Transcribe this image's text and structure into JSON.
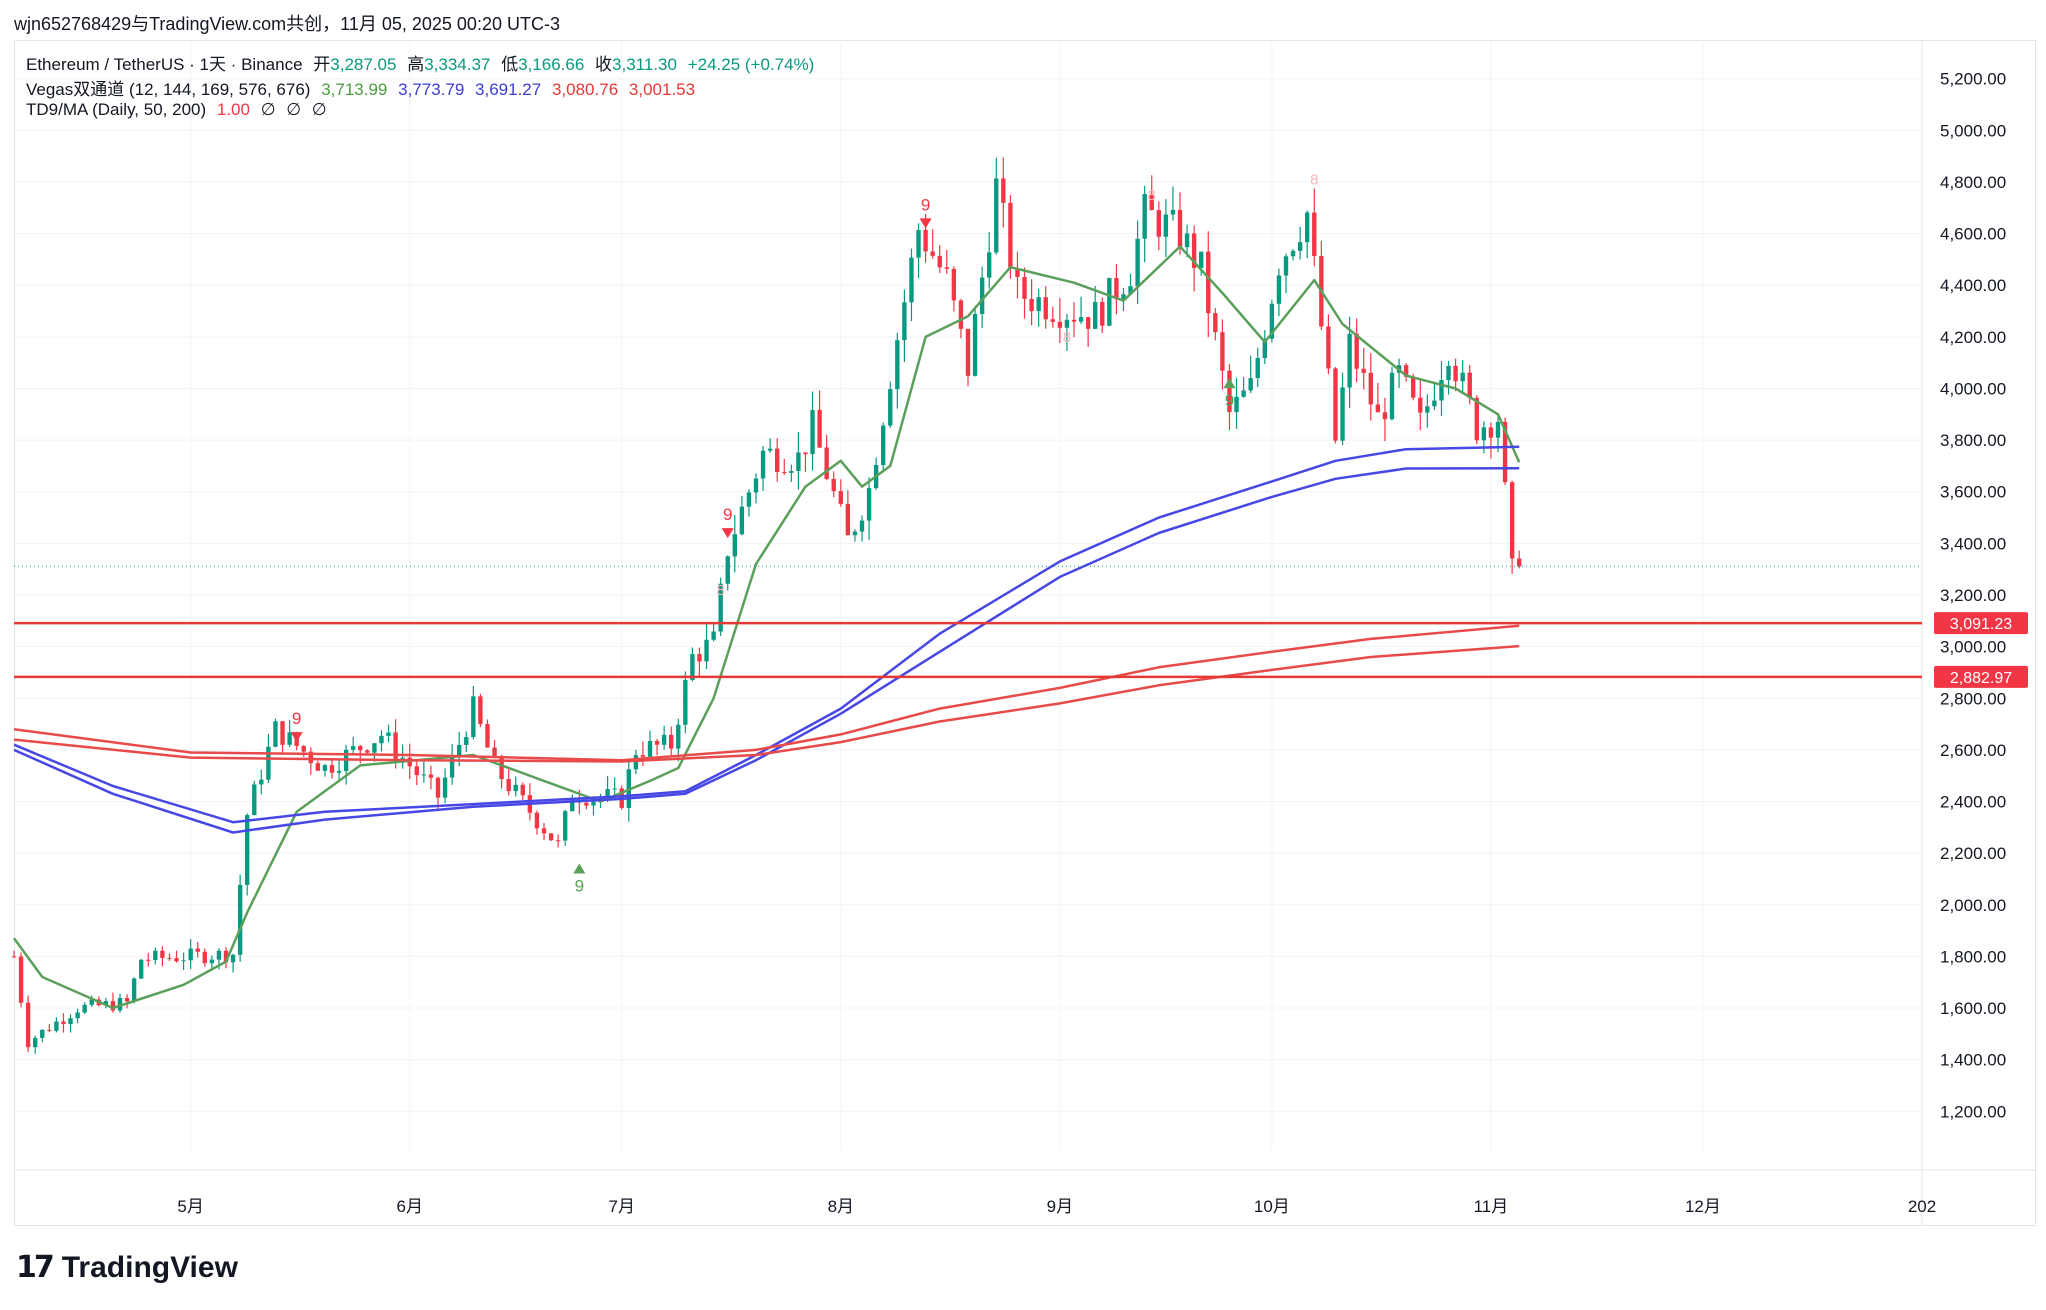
{
  "header": {
    "attribution": "wjn652768429与TradingView.com共创，11月 05, 2025 00:20 UTC-3"
  },
  "legend": {
    "symbol": "Ethereum / TetherUS · 1天 · Binance",
    "ohlc": [
      {
        "label": "开",
        "value": "3,287.05"
      },
      {
        "label": "高",
        "value": "3,334.37"
      },
      {
        "label": "低",
        "value": "3,166.66"
      },
      {
        "label": "收",
        "value": "3,311.30"
      }
    ],
    "change": "+24.25 (+0.74%)",
    "vegas": {
      "title": "Vegas双通道 (12, 144, 169, 576, 676)",
      "values": [
        {
          "value": "3,713.99",
          "color": "#4c9b3f"
        },
        {
          "value": "3,773.79",
          "color": "#3d3dd6"
        },
        {
          "value": "3,691.27",
          "color": "#3d3dd6"
        },
        {
          "value": "3,080.76",
          "color": "#e53935"
        },
        {
          "value": "3,001.53",
          "color": "#e53935"
        }
      ]
    },
    "td9": {
      "title": "TD9/MA (Daily, 50, 200)",
      "value": "1.00",
      "value_color": "#f23645",
      "empty_marks": [
        "∅",
        "∅",
        "∅"
      ]
    }
  },
  "price_labels": [
    {
      "value": "3,091.23",
      "color": "#f23645"
    },
    {
      "value": "2,882.97",
      "color": "#f23645"
    }
  ],
  "colors": {
    "up": "#089981",
    "down": "#f23645",
    "ema12": "#5aa05a",
    "ema_blue": "#4747e6",
    "ema_red": "#e84a4a",
    "hline": "#e53935"
  },
  "logo_text": "TradingView",
  "chart_data": {
    "type": "candlestick",
    "symbol": "ETH/USDT",
    "interval": "1D",
    "y_axis": {
      "ticks": [
        "1,200.00",
        "1,400.00",
        "1,600.00",
        "1,800.00",
        "2,000.00",
        "2,200.00",
        "2,400.00",
        "2,600.00",
        "2,800.00",
        "3,000.00",
        "3,200.00",
        "3,400.00",
        "3,600.00",
        "3,800.00",
        "4,000.00",
        "4,200.00",
        "4,400.00",
        "4,600.00",
        "4,800.00",
        "5,000.00",
        "5,200.00"
      ],
      "range": [
        1050,
        5350
      ]
    },
    "x_axis": {
      "ticks": [
        "5月",
        "6月",
        "7月",
        "8月",
        "9月",
        "10月",
        "11月",
        "12月",
        "202"
      ],
      "tick_dates": [
        "2025-05-01",
        "2025-06-01",
        "2025-07-01",
        "2025-08-01",
        "2025-09-01",
        "2025-10-01",
        "2025-11-01",
        "2025-12-01",
        "2026-01-01"
      ],
      "start": "2025-04-06",
      "end": "2026-01-01"
    },
    "horizontal_lines": [
      3091.23,
      2882.97
    ],
    "last_price": 3311.3,
    "anchor_prices": [
      {
        "date": "2025-04-06",
        "close": 1800
      },
      {
        "date": "2025-04-08",
        "close": 1470
      },
      {
        "date": "2025-04-15",
        "close": 1600
      },
      {
        "date": "2025-04-22",
        "close": 1620
      },
      {
        "date": "2025-04-24",
        "close": 1790
      },
      {
        "date": "2025-05-07",
        "close": 1810
      },
      {
        "date": "2025-05-09",
        "close": 2350
      },
      {
        "date": "2025-05-13",
        "close": 2680
      },
      {
        "date": "2025-05-20",
        "close": 2530
      },
      {
        "date": "2025-05-28",
        "close": 2660
      },
      {
        "date": "2025-06-05",
        "close": 2420
      },
      {
        "date": "2025-06-10",
        "close": 2760
      },
      {
        "date": "2025-06-13",
        "close": 2530
      },
      {
        "date": "2025-06-22",
        "close": 2230
      },
      {
        "date": "2025-06-24",
        "close": 2430
      },
      {
        "date": "2025-07-01",
        "close": 2410
      },
      {
        "date": "2025-07-03",
        "close": 2600
      },
      {
        "date": "2025-07-08",
        "close": 2620
      },
      {
        "date": "2025-07-11",
        "close": 2960
      },
      {
        "date": "2025-07-14",
        "close": 3020
      },
      {
        "date": "2025-07-16",
        "close": 3380
      },
      {
        "date": "2025-07-21",
        "close": 3750
      },
      {
        "date": "2025-07-26",
        "close": 3730
      },
      {
        "date": "2025-07-28",
        "close": 3850
      },
      {
        "date": "2025-08-02",
        "close": 3410
      },
      {
        "date": "2025-08-05",
        "close": 3610
      },
      {
        "date": "2025-08-09",
        "close": 4200
      },
      {
        "date": "2025-08-12",
        "close": 4620
      },
      {
        "date": "2025-08-16",
        "close": 4420
      },
      {
        "date": "2025-08-19",
        "close": 4080
      },
      {
        "date": "2025-08-23",
        "close": 4780
      },
      {
        "date": "2025-08-26",
        "close": 4370
      },
      {
        "date": "2025-09-01",
        "close": 4310
      },
      {
        "date": "2025-09-06",
        "close": 4280
      },
      {
        "date": "2025-09-11",
        "close": 4460
      },
      {
        "date": "2025-09-13",
        "close": 4680
      },
      {
        "date": "2025-09-18",
        "close": 4600
      },
      {
        "date": "2025-09-21",
        "close": 4460
      },
      {
        "date": "2025-09-25",
        "close": 3900
      },
      {
        "date": "2025-09-28",
        "close": 4000
      },
      {
        "date": "2025-10-02",
        "close": 4490
      },
      {
        "date": "2025-10-06",
        "close": 4680
      },
      {
        "date": "2025-10-10",
        "close": 3800
      },
      {
        "date": "2025-10-12",
        "close": 4170
      },
      {
        "date": "2025-10-16",
        "close": 3880
      },
      {
        "date": "2025-10-19",
        "close": 4050
      },
      {
        "date": "2025-10-22",
        "close": 3860
      },
      {
        "date": "2025-10-26",
        "close": 4160
      },
      {
        "date": "2025-10-30",
        "close": 3850
      },
      {
        "date": "2025-11-02",
        "close": 3890
      },
      {
        "date": "2025-11-03",
        "close": 3590
      },
      {
        "date": "2025-11-04",
        "close": 3287
      },
      {
        "date": "2025-11-05",
        "close": 3311
      }
    ],
    "series": [
      {
        "name": "Vegas EMA12",
        "last": 3713.99,
        "points": [
          [
            "2025-04-06",
            1870
          ],
          [
            "2025-04-10",
            1720
          ],
          [
            "2025-04-20",
            1600
          ],
          [
            "2025-04-30",
            1690
          ],
          [
            "2025-05-06",
            1780
          ],
          [
            "2025-05-09",
            1970
          ],
          [
            "2025-05-16",
            2360
          ],
          [
            "2025-05-25",
            2540
          ],
          [
            "2025-06-10",
            2580
          ],
          [
            "2025-06-20",
            2480
          ],
          [
            "2025-06-28",
            2400
          ],
          [
            "2025-07-05",
            2480
          ],
          [
            "2025-07-09",
            2530
          ],
          [
            "2025-07-14",
            2800
          ],
          [
            "2025-07-20",
            3320
          ],
          [
            "2025-07-27",
            3620
          ],
          [
            "2025-08-01",
            3720
          ],
          [
            "2025-08-04",
            3620
          ],
          [
            "2025-08-08",
            3700
          ],
          [
            "2025-08-13",
            4200
          ],
          [
            "2025-08-19",
            4280
          ],
          [
            "2025-08-25",
            4470
          ],
          [
            "2025-09-03",
            4410
          ],
          [
            "2025-09-10",
            4340
          ],
          [
            "2025-09-18",
            4550
          ],
          [
            "2025-09-24",
            4370
          ],
          [
            "2025-09-30",
            4180
          ],
          [
            "2025-10-07",
            4420
          ],
          [
            "2025-10-11",
            4250
          ],
          [
            "2025-10-20",
            4050
          ],
          [
            "2025-10-27",
            4000
          ],
          [
            "2025-11-02",
            3900
          ],
          [
            "2025-11-05",
            3714
          ]
        ]
      },
      {
        "name": "Vegas EMA144",
        "last": 3773.79,
        "points": [
          [
            "2025-04-06",
            2620
          ],
          [
            "2025-04-20",
            2460
          ],
          [
            "2025-05-07",
            2320
          ],
          [
            "2025-05-20",
            2360
          ],
          [
            "2025-06-10",
            2390
          ],
          [
            "2025-07-01",
            2420
          ],
          [
            "2025-07-10",
            2440
          ],
          [
            "2025-07-20",
            2580
          ],
          [
            "2025-08-01",
            2760
          ],
          [
            "2025-08-15",
            3050
          ],
          [
            "2025-09-01",
            3330
          ],
          [
            "2025-09-15",
            3500
          ],
          [
            "2025-10-01",
            3640
          ],
          [
            "2025-10-10",
            3720
          ],
          [
            "2025-10-20",
            3765
          ],
          [
            "2025-11-05",
            3774
          ]
        ]
      },
      {
        "name": "Vegas EMA169",
        "last": 3691.27,
        "points": [
          [
            "2025-04-06",
            2600
          ],
          [
            "2025-04-20",
            2430
          ],
          [
            "2025-05-07",
            2280
          ],
          [
            "2025-05-20",
            2330
          ],
          [
            "2025-06-10",
            2380
          ],
          [
            "2025-07-01",
            2410
          ],
          [
            "2025-07-10",
            2430
          ],
          [
            "2025-07-20",
            2560
          ],
          [
            "2025-08-01",
            2740
          ],
          [
            "2025-08-15",
            2980
          ],
          [
            "2025-09-01",
            3270
          ],
          [
            "2025-09-15",
            3440
          ],
          [
            "2025-10-01",
            3580
          ],
          [
            "2025-10-10",
            3650
          ],
          [
            "2025-10-20",
            3690
          ],
          [
            "2025-11-05",
            3691
          ]
        ]
      },
      {
        "name": "Vegas EMA576",
        "last": 3080.76,
        "points": [
          [
            "2025-04-06",
            2680
          ],
          [
            "2025-05-01",
            2590
          ],
          [
            "2025-06-01",
            2580
          ],
          [
            "2025-07-01",
            2560
          ],
          [
            "2025-07-20",
            2600
          ],
          [
            "2025-08-01",
            2660
          ],
          [
            "2025-08-15",
            2760
          ],
          [
            "2025-09-01",
            2840
          ],
          [
            "2025-09-15",
            2920
          ],
          [
            "2025-10-01",
            2980
          ],
          [
            "2025-10-15",
            3030
          ],
          [
            "2025-11-05",
            3081
          ]
        ]
      },
      {
        "name": "Vegas EMA676",
        "last": 3001.53,
        "points": [
          [
            "2025-04-06",
            2640
          ],
          [
            "2025-05-01",
            2570
          ],
          [
            "2025-06-01",
            2560
          ],
          [
            "2025-07-01",
            2555
          ],
          [
            "2025-07-20",
            2580
          ],
          [
            "2025-08-01",
            2630
          ],
          [
            "2025-08-15",
            2710
          ],
          [
            "2025-09-01",
            2780
          ],
          [
            "2025-09-15",
            2850
          ],
          [
            "2025-10-01",
            2910
          ],
          [
            "2025-10-15",
            2960
          ],
          [
            "2025-11-05",
            3002
          ]
        ]
      }
    ],
    "td_markers": [
      {
        "date": "2025-05-16",
        "label": "9",
        "type": "sell",
        "price": 2700
      },
      {
        "date": "2025-06-25",
        "label": "9",
        "type": "buy",
        "price": 2160
      },
      {
        "date": "2025-07-16",
        "label": "9",
        "type": "sell",
        "price": 3490
      },
      {
        "date": "2025-08-13",
        "label": "9",
        "type": "sell",
        "price": 4690
      },
      {
        "date": "2025-09-25",
        "label": "9",
        "type": "buy",
        "price": 4040
      }
    ],
    "faint_counts": [
      {
        "date": "2025-07-15",
        "label": "8",
        "price": 3200
      },
      {
        "date": "2025-09-02",
        "label": "8",
        "price": 4180
      },
      {
        "date": "2025-09-14",
        "label": "8",
        "price": 4730
      },
      {
        "date": "2025-10-07",
        "label": "8",
        "price": 4790
      }
    ]
  }
}
